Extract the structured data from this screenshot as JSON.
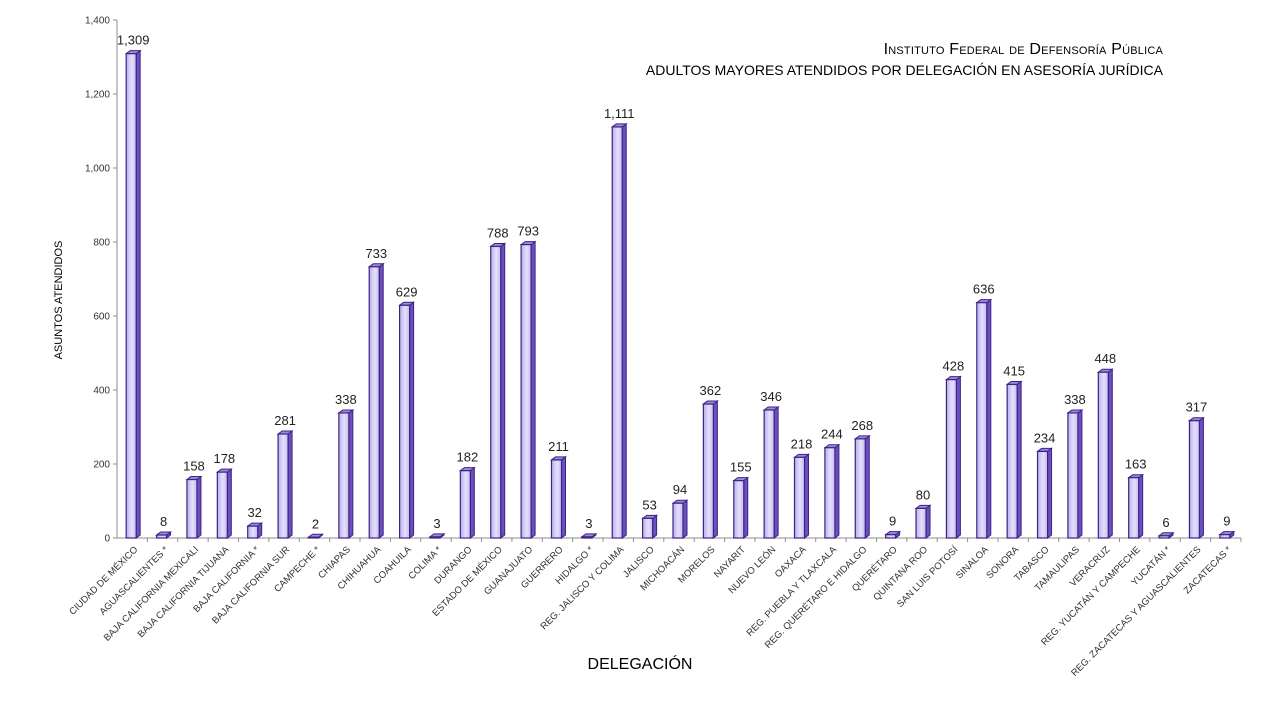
{
  "chart_data": {
    "type": "bar",
    "title": "Instituto Federal de Defensoría Pública",
    "subtitle": "ADULTOS MAYORES ATENDIDOS POR DELEGACIÓN EN ASESORÍA JURÍDICA",
    "xlabel": "DELEGACIÓN",
    "ylabel": "ASUNTOS ATENDIDOS",
    "ylim": [
      0,
      1400
    ],
    "yticks": [
      "0",
      "200",
      "400",
      "600",
      "800",
      "1,000",
      "1,200",
      "1,400"
    ],
    "ytick_values": [
      0,
      200,
      400,
      600,
      800,
      1000,
      1200,
      1400
    ],
    "grid": false,
    "bar_color": "#c9c3f2",
    "bar_edge_color": "#4b2a8f",
    "categories": [
      "CIUDAD DE MÉXICO",
      "AGUASCALIENTES *",
      "BAJA CALIFORNIA MEXICALI",
      "BAJA CALIFORNIA TIJUANA",
      "BAJA CALIFORNIA  *",
      "BAJA CALIFORNIA SUR",
      "CAMPECHE *",
      "CHIAPAS",
      "CHIHUAHUA",
      "COAHUILA",
      "COLIMA *",
      "DURANGO",
      "ESTADO DE MÉXICO",
      "GUANAJUATO",
      "GUERRERO",
      "HIDALGO *",
      "REG. JALISCO Y COLIMA",
      "JALISCO",
      "MICHOACÁN",
      "MORELOS",
      "NAYARIT",
      "NUEVO LEÓN",
      "OAXACA",
      "REG. PUEBLA Y TLAXCALA",
      "REG. QUERÉTARO E HIDALGO",
      "QUERÉTARO",
      "QUINTANA ROO",
      "SAN LUIS POTOSÍ",
      "SINALOA",
      "SONORA",
      "TABASCO",
      "TAMAULIPAS",
      "VERACRUZ",
      "REG. YUCATÁN Y CAMPECHE",
      "YUCATÁN *",
      "REG. ZACATECAS Y AGUASCALIENTES",
      "ZACATECAS *"
    ],
    "values": [
      1309,
      8,
      158,
      178,
      32,
      281,
      2,
      338,
      733,
      629,
      3,
      182,
      788,
      793,
      211,
      3,
      1111,
      53,
      94,
      362,
      155,
      346,
      218,
      244,
      268,
      9,
      80,
      428,
      636,
      415,
      234,
      338,
      448,
      163,
      6,
      317,
      9
    ],
    "value_labels": [
      "1,309",
      "8",
      "158",
      "178",
      "32",
      "281",
      "2",
      "338",
      "733",
      "629",
      "3",
      "182",
      "788",
      "793",
      "211",
      "3",
      "1,111",
      "53",
      "94",
      "362",
      "155",
      "346",
      "218",
      "244",
      "268",
      "9",
      "80",
      "428",
      "636",
      "415",
      "234",
      "338",
      "448",
      "163",
      "6",
      "317",
      "9"
    ]
  }
}
